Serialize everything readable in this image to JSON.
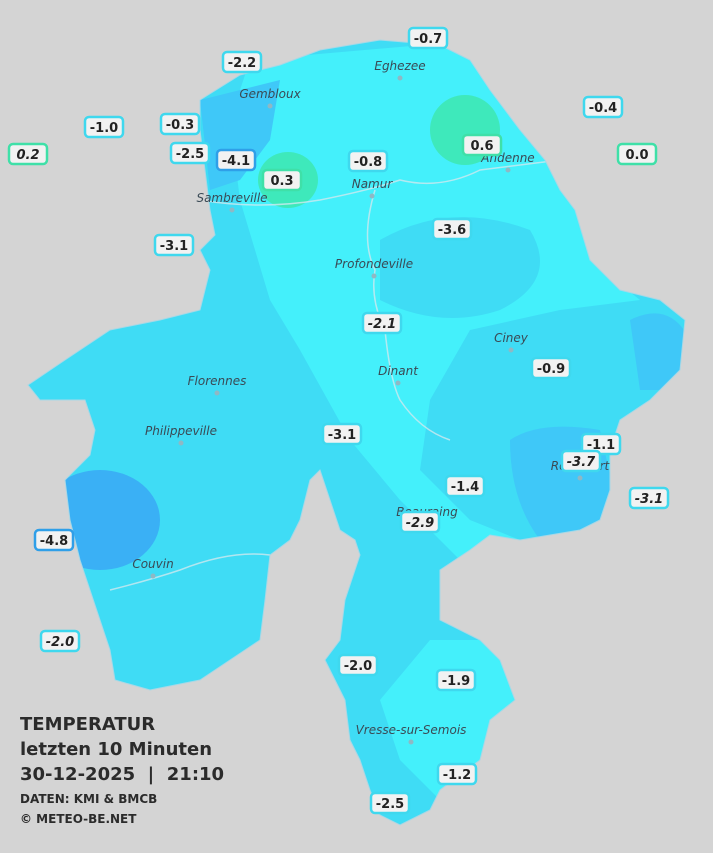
{
  "legend": {
    "title": "TEMPERATUR",
    "period": "letzten 10 Minuten",
    "timestamp": "30-12-2025  |  21:10",
    "source": "DATEN: KMI & BMCB",
    "copyright": "© METEO-BE.NET"
  },
  "cities": [
    "Eghezee",
    "Gembloux",
    "Andenne",
    "Namur",
    "Sambreville",
    "Profondeville",
    "Ciney",
    "Dinant",
    "Florennes",
    "Philippeville",
    "Rochefort",
    "Beauraing",
    "Couvin",
    "Vresse-sur-Semois"
  ],
  "stations": [
    {
      "label": "-0.7",
      "color": "#3fd8ee"
    },
    {
      "label": "-2.2",
      "color": "#3fd8ee"
    },
    {
      "label": "-0.4",
      "color": "#3fd8ee"
    },
    {
      "label": "-1.0",
      "color": "#3fd8ee"
    },
    {
      "label": "-0.3",
      "color": "#3fd8ee"
    },
    {
      "label": "0.6",
      "color": "#3fe0a8"
    },
    {
      "label": "-2.5",
      "color": "#3fd8ee"
    },
    {
      "label": "-4.1",
      "color": "#2f9fe8"
    },
    {
      "label": "-0.8",
      "color": "#3fd8ee"
    },
    {
      "label": "0.0",
      "color": "#3fe0a8"
    },
    {
      "label": "0.2",
      "color": "#3fe0a8"
    },
    {
      "label": "0.3",
      "color": "#3fe0a8"
    },
    {
      "label": "-3.6",
      "color": "#3fd8ee"
    },
    {
      "label": "-3.1",
      "color": "#3fd8ee"
    },
    {
      "label": "-2.1",
      "color": "#3fd8ee"
    },
    {
      "label": "-0.9",
      "color": "#3fd8ee"
    },
    {
      "label": "-3.1",
      "color": "#3fd8ee"
    },
    {
      "label": "-1.1",
      "color": "#3fd8ee"
    },
    {
      "label": "-3.7",
      "color": "#3fd8ee"
    },
    {
      "label": "-3.1",
      "color": "#3fd8ee"
    },
    {
      "label": "-1.4",
      "color": "#3fd8ee"
    },
    {
      "label": "-2.9",
      "color": "#3fd8ee"
    },
    {
      "label": "-4.8",
      "color": "#2f9fe8"
    },
    {
      "label": "-2.0",
      "color": "#3fd8ee"
    },
    {
      "label": "-2.0",
      "color": "#3fd8ee"
    },
    {
      "label": "-1.9",
      "color": "#3fd8ee"
    },
    {
      "label": "-1.2",
      "color": "#3fd8ee"
    },
    {
      "label": "-2.5",
      "color": "#3fd8ee"
    }
  ]
}
